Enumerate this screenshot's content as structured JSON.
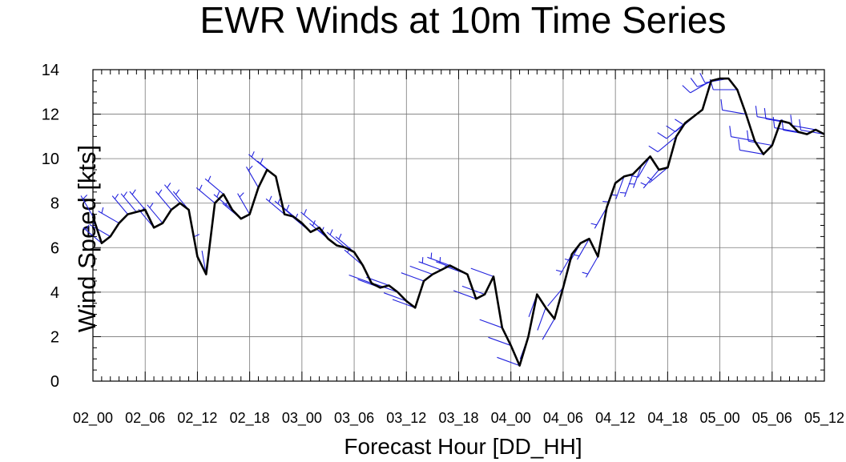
{
  "chart_data": {
    "type": "line",
    "title": "EWR Winds at 10m Time Series",
    "xlabel": "Forecast Hour [DD_HH]",
    "ylabel": "Wind Speed [kts]",
    "ylim": [
      0,
      14
    ],
    "xlim": [
      0,
      84
    ],
    "yticks": [
      0,
      2,
      4,
      6,
      8,
      10,
      12,
      14
    ],
    "xticks": [
      {
        "x": 0,
        "label": "02_00"
      },
      {
        "x": 6,
        "label": "02_06"
      },
      {
        "x": 12,
        "label": "02_12"
      },
      {
        "x": 18,
        "label": "02_18"
      },
      {
        "x": 24,
        "label": "03_00"
      },
      {
        "x": 30,
        "label": "03_06"
      },
      {
        "x": 36,
        "label": "03_12"
      },
      {
        "x": 42,
        "label": "03_18"
      },
      {
        "x": 48,
        "label": "04_00"
      },
      {
        "x": 54,
        "label": "04_06"
      },
      {
        "x": 60,
        "label": "04_12"
      },
      {
        "x": 66,
        "label": "04_18"
      },
      {
        "x": 72,
        "label": "05_00"
      },
      {
        "x": 78,
        "label": "05_06"
      },
      {
        "x": 84,
        "label": "05_12"
      }
    ],
    "grid": true,
    "series": [
      {
        "color": "#000000",
        "x": [
          0,
          1,
          2,
          3,
          4,
          5,
          6,
          7,
          8,
          9,
          10,
          11,
          12,
          13,
          14,
          15,
          16,
          17,
          18,
          19,
          20,
          21,
          22,
          23,
          24,
          25,
          26,
          27,
          28,
          29,
          30,
          31,
          32,
          33,
          34,
          35,
          36,
          37,
          38,
          39,
          40,
          41,
          42,
          43,
          44,
          45,
          46,
          47,
          48,
          49,
          50,
          51,
          52,
          53,
          54,
          55,
          56,
          57,
          58,
          59,
          60,
          61,
          62,
          63,
          64,
          65,
          66,
          67,
          68,
          69,
          70,
          71,
          72,
          73,
          74,
          75,
          76,
          77,
          78,
          79,
          80,
          81,
          82,
          83,
          84
        ],
        "y": [
          7.4,
          6.2,
          6.5,
          7.1,
          7.5,
          7.6,
          7.7,
          6.9,
          7.1,
          7.7,
          8.0,
          7.7,
          5.6,
          4.8,
          8.0,
          8.4,
          7.7,
          7.3,
          7.5,
          8.7,
          9.5,
          9.2,
          7.5,
          7.4,
          7.1,
          6.7,
          6.9,
          6.4,
          6.1,
          6.0,
          5.8,
          5.2,
          4.4,
          4.2,
          4.3,
          4.0,
          3.6,
          3.3,
          4.5,
          4.8,
          5.0,
          5.2,
          5.0,
          4.8,
          3.7,
          3.9,
          4.7,
          2.4,
          1.6,
          0.7,
          2.0,
          3.9,
          3.3,
          2.8,
          4.2,
          5.7,
          6.2,
          6.4,
          5.6,
          7.8,
          8.9,
          9.2,
          9.3,
          9.7,
          10.1,
          9.5,
          9.6,
          11.0,
          11.6,
          11.9,
          12.2,
          13.5,
          13.6,
          13.6,
          13.1,
          12.0,
          10.8,
          10.2,
          10.6,
          11.7,
          11.6,
          11.2,
          11.1,
          11.3,
          11.1
        ]
      }
    ],
    "wind_barbs": {
      "color": "#2222dd",
      "directions_deg": [
        330,
        310,
        300,
        300,
        320,
        320,
        320,
        320,
        320,
        320,
        320,
        320,
        350,
        350,
        310,
        310,
        310,
        310,
        330,
        330,
        310,
        310,
        310,
        310,
        310,
        310,
        310,
        310,
        310,
        310,
        310,
        310,
        290,
        290,
        290,
        290,
        290,
        290,
        290,
        290,
        290,
        290,
        290,
        290,
        290,
        290,
        290,
        290,
        290,
        290,
        200,
        200,
        200,
        210,
        220,
        210,
        210,
        210,
        210,
        210,
        200,
        200,
        200,
        200,
        210,
        220,
        230,
        230,
        230,
        230,
        230,
        240,
        250,
        260,
        270,
        280,
        280,
        280,
        280,
        280,
        280,
        280,
        280,
        280,
        280
      ]
    }
  }
}
